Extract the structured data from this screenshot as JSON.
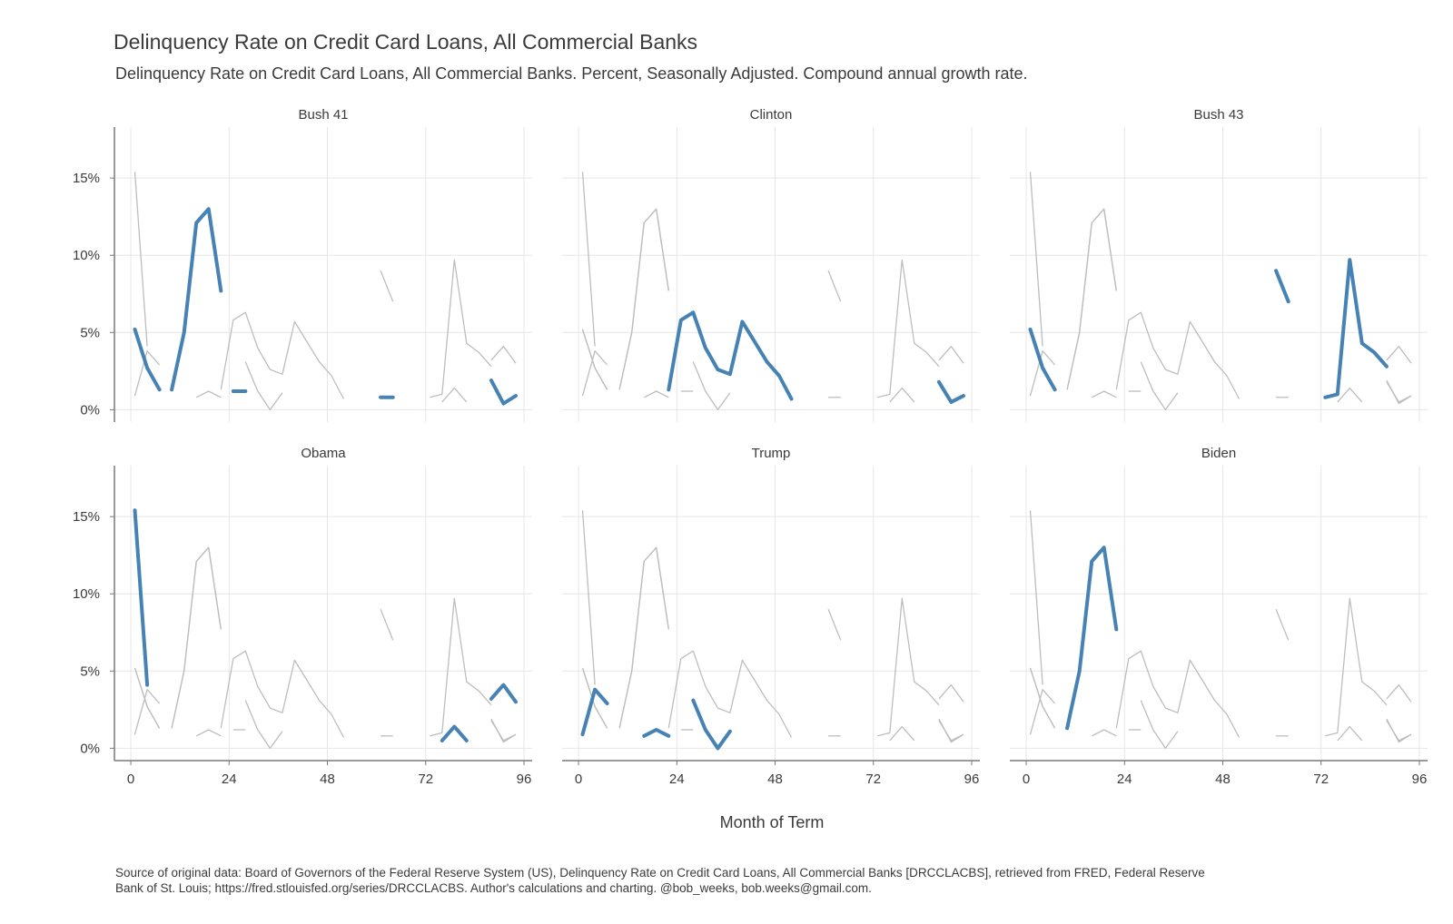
{
  "chart_data": {
    "type": "line",
    "title": "Delinquency Rate on Credit Card Loans, All Commercial Banks",
    "subtitle": "Delinquency Rate on Credit Card Loans, All Commercial Banks. Percent, Seasonally Adjusted. Compound annual growth rate.",
    "xlabel": "Month of Term",
    "ylabel": "",
    "caption_lines": [
      "Source of original data: Board of Governors of the Federal Reserve System (US), Delinquency Rate on Credit Card Loans, All Commercial Banks [DRCCLACBS], retrieved from FRED, Federal Reserve",
      "Bank of St. Louis; https://fred.stlouisfed.org/series/DRCCLACBS. Author's calculations and charting. @bob_weeks, bob.weeks@gmail.com."
    ],
    "xlim": [
      -4,
      98
    ],
    "ylim": [
      -0.8,
      18.3
    ],
    "x_ticks": [
      0,
      24,
      48,
      72,
      96
    ],
    "x_tick_labels": [
      "0",
      "24",
      "48",
      "72",
      "96"
    ],
    "y_ticks": [
      0,
      5,
      10,
      15
    ],
    "y_tick_labels": [
      "0%",
      "5%",
      "10%",
      "15%"
    ],
    "grid": true,
    "colors": {
      "highlight": "#4682b4",
      "background": "#bdbdbd",
      "grid": "#e6e6e6",
      "axis": "#7a7a7a"
    },
    "panel_order": [
      "Bush 41",
      "Clinton",
      "Bush 43",
      "Obama",
      "Trump",
      "Biden"
    ],
    "series": [
      {
        "name": "Bush 41",
        "segments": [
          {
            "x": [
              1,
              4,
              7
            ],
            "y": [
              5.2,
              2.7,
              1.3
            ]
          },
          {
            "x": [
              10,
              13,
              16,
              19,
              22
            ],
            "y": [
              1.3,
              5.0,
              12.1,
              13.0,
              7.7
            ]
          },
          {
            "x": [
              25,
              28
            ],
            "y": [
              1.2,
              1.2
            ]
          },
          {
            "x": [
              61,
              64
            ],
            "y": [
              0.8,
              0.8
            ]
          },
          {
            "x": [
              88,
              91,
              94
            ],
            "y": [
              1.9,
              0.4,
              0.9
            ]
          }
        ]
      },
      {
        "name": "Clinton",
        "segments": [
          {
            "x": [
              22,
              25,
              28,
              31,
              34,
              37,
              40,
              43,
              46,
              49,
              52
            ],
            "y": [
              1.3,
              5.8,
              6.3,
              4.0,
              2.6,
              2.3,
              5.7,
              4.4,
              3.1,
              2.2,
              0.7
            ]
          },
          {
            "x": [
              88,
              91,
              94
            ],
            "y": [
              1.8,
              0.5,
              0.9
            ]
          }
        ]
      },
      {
        "name": "Bush 43",
        "segments": [
          {
            "x": [
              1,
              4,
              7
            ],
            "y": [
              5.2,
              2.7,
              1.3
            ]
          },
          {
            "x": [
              61,
              64
            ],
            "y": [
              9.0,
              7.0
            ]
          },
          {
            "x": [
              73,
              76,
              79,
              82,
              85,
              88
            ],
            "y": [
              0.8,
              1.0,
              9.7,
              4.3,
              3.7,
              2.8
            ]
          }
        ]
      },
      {
        "name": "Obama",
        "segments": [
          {
            "x": [
              1,
              4
            ],
            "y": [
              15.4,
              4.1
            ]
          },
          {
            "x": [
              76,
              79,
              82
            ],
            "y": [
              0.5,
              1.4,
              0.5
            ]
          },
          {
            "x": [
              88,
              91,
              94
            ],
            "y": [
              3.2,
              4.1,
              3.0
            ]
          }
        ]
      },
      {
        "name": "Trump",
        "segments": [
          {
            "x": [
              1,
              4,
              7
            ],
            "y": [
              0.9,
              3.8,
              2.9
            ]
          },
          {
            "x": [
              16,
              19,
              22
            ],
            "y": [
              0.8,
              1.2,
              0.8
            ]
          },
          {
            "x": [
              28,
              31,
              34,
              37
            ],
            "y": [
              3.1,
              1.2,
              0.0,
              1.1
            ]
          }
        ]
      },
      {
        "name": "Biden",
        "segments": [
          {
            "x": [
              10,
              13,
              16,
              19,
              22
            ],
            "y": [
              1.3,
              5.0,
              12.1,
              13.0,
              7.7
            ]
          }
        ]
      }
    ]
  }
}
